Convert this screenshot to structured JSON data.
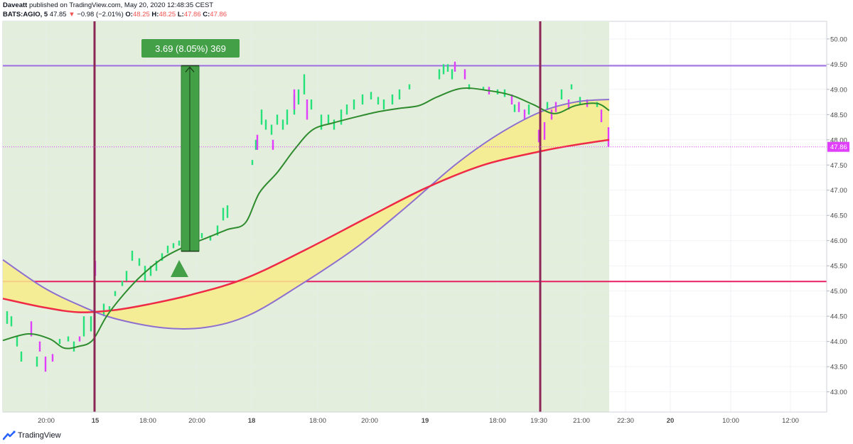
{
  "header": {
    "author": "Daveatt",
    "published": "published on TradingView.com, May 20, 2020 12:48:35 CEST",
    "symbol": "BATS:AGIO, 5",
    "last": "47.85",
    "change_arrow": "▼",
    "change": "−0.98 (−2.01%)",
    "o_label": "O:",
    "o": "48.25",
    "h_label": "H:",
    "h": "48.25",
    "l_label": "L:",
    "l": "47.86",
    "c_label": "C:",
    "c": "47.86"
  },
  "footer": {
    "brand": "TradingView"
  },
  "chart_data": {
    "type": "candlestick",
    "ylim": [
      42.6,
      50.35
    ],
    "y_ticks": [
      "43.00",
      "43.50",
      "44.00",
      "44.50",
      "45.00",
      "45.50",
      "46.00",
      "46.50",
      "47.00",
      "47.50",
      "48.00",
      "48.50",
      "49.00",
      "49.50",
      "50.00"
    ],
    "x_ticks": [
      "20:00",
      "15",
      "18:00",
      "20:00",
      "18",
      "18:00",
      "20:00",
      "19",
      "18:00",
      "19:30",
      "21:00",
      "22:30",
      "20",
      "10:00",
      "12:00"
    ],
    "bold_x_ticks": [
      "15",
      "18",
      "19",
      "20"
    ],
    "price_label": "47.86",
    "measure_label": "3.69 (8.05%) 369",
    "horizontal_levels": [
      {
        "price": 49.47,
        "color": "#9c6ce0"
      },
      {
        "price": 45.19,
        "color": "#e91e63"
      }
    ],
    "last_price_line": 47.86,
    "colors": {
      "up": "#26e07a",
      "down": "#e040fb",
      "background_zone": "#e3efdc",
      "fast_ma": "#2e8b2e",
      "slow_ma": "#ef2a47",
      "curve": "#8e6fd0",
      "fill_band": "#f7ec8a",
      "measure": "#43a047",
      "vline": "#8e2755",
      "axis_text": "#4a4a4a",
      "price_tag": "#e040fb"
    },
    "candles_up": [
      [
        44.35,
        44.6
      ],
      [
        44.3,
        44.5
      ],
      [
        43.9,
        44.1
      ],
      [
        43.6,
        43.8
      ],
      [
        43.5,
        43.7
      ],
      [
        43.95,
        44.05
      ],
      [
        44.0,
        44.1
      ],
      [
        43.8,
        44.0
      ],
      [
        44.1,
        44.5
      ],
      [
        44.2,
        44.5
      ],
      [
        44.5,
        44.75
      ],
      [
        44.6,
        44.7
      ],
      [
        44.9,
        45.0
      ],
      [
        45.1,
        45.2
      ],
      [
        45.2,
        45.4
      ],
      [
        45.6,
        45.8
      ],
      [
        45.5,
        45.65
      ],
      [
        45.2,
        45.5
      ],
      [
        45.3,
        45.5
      ],
      [
        45.4,
        45.6
      ],
      [
        45.6,
        45.75
      ],
      [
        45.75,
        45.9
      ],
      [
        45.85,
        45.95
      ],
      [
        45.9,
        46.0
      ],
      [
        45.95,
        46.05
      ],
      [
        46.0,
        46.1
      ],
      [
        46.05,
        46.15
      ],
      [
        46.0,
        46.1
      ],
      [
        46.1,
        46.3
      ],
      [
        46.4,
        46.65
      ],
      [
        46.45,
        46.7
      ],
      [
        47.5,
        47.6
      ],
      [
        47.8,
        48.0
      ],
      [
        48.3,
        48.6
      ],
      [
        48.2,
        48.4
      ],
      [
        48.1,
        48.3
      ],
      [
        48.3,
        48.5
      ],
      [
        48.2,
        48.4
      ],
      [
        48.3,
        48.6
      ],
      [
        48.5,
        48.9
      ],
      [
        48.7,
        49.0
      ],
      [
        48.9,
        49.3
      ],
      [
        48.6,
        48.8
      ],
      [
        48.2,
        48.5
      ],
      [
        48.3,
        48.5
      ],
      [
        48.2,
        48.4
      ],
      [
        48.3,
        48.6
      ],
      [
        48.5,
        48.7
      ],
      [
        48.6,
        48.8
      ],
      [
        48.7,
        48.9
      ],
      [
        48.8,
        48.95
      ],
      [
        48.7,
        48.85
      ],
      [
        48.6,
        48.8
      ],
      [
        48.7,
        48.9
      ],
      [
        48.8,
        49.0
      ],
      [
        49.0,
        49.1
      ],
      [
        49.2,
        49.4
      ],
      [
        49.3,
        49.5
      ],
      [
        49.35,
        49.5
      ],
      [
        49.2,
        49.4
      ],
      [
        49.0,
        49.1
      ],
      [
        49.0,
        49.05
      ],
      [
        48.9,
        49.0
      ],
      [
        48.85,
        49.0
      ],
      [
        48.55,
        48.7
      ],
      [
        48.5,
        48.7
      ],
      [
        48.6,
        48.75
      ],
      [
        48.8,
        49.0
      ],
      [
        49.0,
        49.1
      ],
      [
        48.7,
        48.85
      ],
      [
        48.65,
        48.75
      ]
    ],
    "candles_down": [
      [
        44.1,
        44.4
      ],
      [
        43.8,
        44.0
      ],
      [
        43.4,
        43.7
      ],
      [
        43.6,
        43.75
      ],
      [
        44.0,
        44.1
      ],
      [
        45.3,
        45.6
      ],
      [
        47.8,
        48.1
      ],
      [
        47.8,
        48.0
      ],
      [
        48.6,
        49.0
      ],
      [
        48.4,
        48.8
      ],
      [
        49.35,
        49.55
      ],
      [
        49.2,
        49.4
      ],
      [
        48.9,
        49.05
      ],
      [
        48.7,
        48.9
      ],
      [
        48.55,
        48.75
      ],
      [
        48.4,
        48.6
      ],
      [
        47.95,
        48.2
      ],
      [
        48.0,
        48.35
      ],
      [
        48.4,
        48.6
      ],
      [
        48.55,
        48.75
      ],
      [
        48.6,
        48.8
      ],
      [
        48.65,
        48.8
      ],
      [
        48.35,
        48.6
      ],
      [
        47.86,
        48.25
      ]
    ]
  }
}
